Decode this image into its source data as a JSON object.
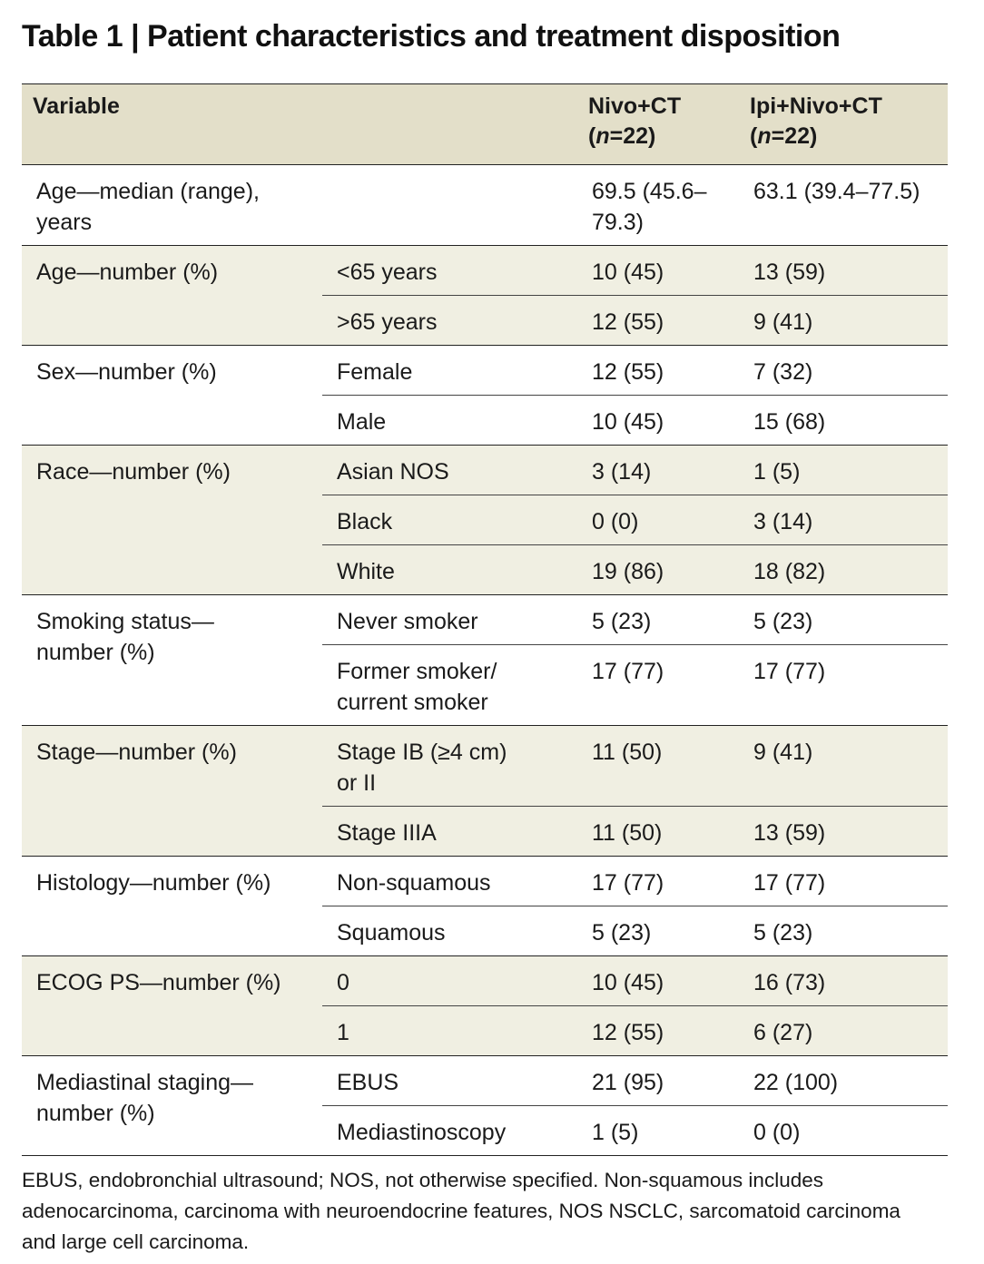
{
  "title": "Table 1 | Patient characteristics and treatment disposition",
  "header": {
    "variable": "Variable",
    "col1_line1": "Nivo+CT",
    "col1_n": "n",
    "col1_rest": "=22)",
    "col2_line1": "Ipi+Nivo+CT",
    "col2_n": "n",
    "col2_rest": "=22)"
  },
  "rows": {
    "age_median": {
      "label": "Age—median (range), years",
      "nivo": "69.5 (45.6–79.3)",
      "ipi": "63.1 (39.4–77.5)"
    },
    "age_number": {
      "label": "Age—number (%)",
      "sub": [
        {
          "name": "<65 years",
          "nivo": "10 (45)",
          "ipi": "13 (59)"
        },
        {
          "name": ">65 years",
          "nivo": "12 (55)",
          "ipi": "9 (41)"
        }
      ]
    },
    "sex": {
      "label": "Sex—number (%)",
      "sub": [
        {
          "name": "Female",
          "nivo": "12 (55)",
          "ipi": "7 (32)"
        },
        {
          "name": "Male",
          "nivo": "10 (45)",
          "ipi": "15 (68)"
        }
      ]
    },
    "race": {
      "label": "Race—number (%)",
      "sub": [
        {
          "name": "Asian NOS",
          "nivo": "3 (14)",
          "ipi": "1 (5)"
        },
        {
          "name": "Black",
          "nivo": "0 (0)",
          "ipi": "3 (14)"
        },
        {
          "name": "White",
          "nivo": "19 (86)",
          "ipi": "18 (82)"
        }
      ]
    },
    "smoking": {
      "label": "Smoking status—number (%)",
      "sub": [
        {
          "name": "Never smoker",
          "nivo": "5 (23)",
          "ipi": "5 (23)"
        },
        {
          "name": "Former smoker/ current smoker",
          "nivo": "17 (77)",
          "ipi": "17 (77)"
        }
      ]
    },
    "stage": {
      "label": "Stage—number (%)",
      "sub": [
        {
          "name": "Stage IB (≥4 cm) or II",
          "nivo": "11 (50)",
          "ipi": "9 (41)"
        },
        {
          "name": "Stage IIIA",
          "nivo": "11 (50)",
          "ipi": "13 (59)"
        }
      ]
    },
    "histology": {
      "label": "Histology—number (%)",
      "sub": [
        {
          "name": "Non-squamous",
          "nivo": "17 (77)",
          "ipi": "17 (77)"
        },
        {
          "name": "Squamous",
          "nivo": "5 (23)",
          "ipi": "5 (23)"
        }
      ]
    },
    "ecog": {
      "label": "ECOG PS—number (%)",
      "sub": [
        {
          "name": "0",
          "nivo": "10 (45)",
          "ipi": "16 (73)"
        },
        {
          "name": "1",
          "nivo": "12 (55)",
          "ipi": "6 (27)"
        }
      ]
    },
    "mediastinal": {
      "label": "Mediastinal staging—number (%)",
      "sub": [
        {
          "name": "EBUS",
          "nivo": "21 (95)",
          "ipi": "22 (100)"
        },
        {
          "name": "Mediastinoscopy",
          "nivo": "1 (5)",
          "ipi": "0 (0)"
        }
      ]
    }
  },
  "footnote": "EBUS, endobronchial ultrasound; NOS, not otherwise specified. Non-squamous includes adenocarcinoma, carcinoma with neuroendocrine features, NOS NSCLC, sarcomatoid carcinoma and large cell carcinoma."
}
